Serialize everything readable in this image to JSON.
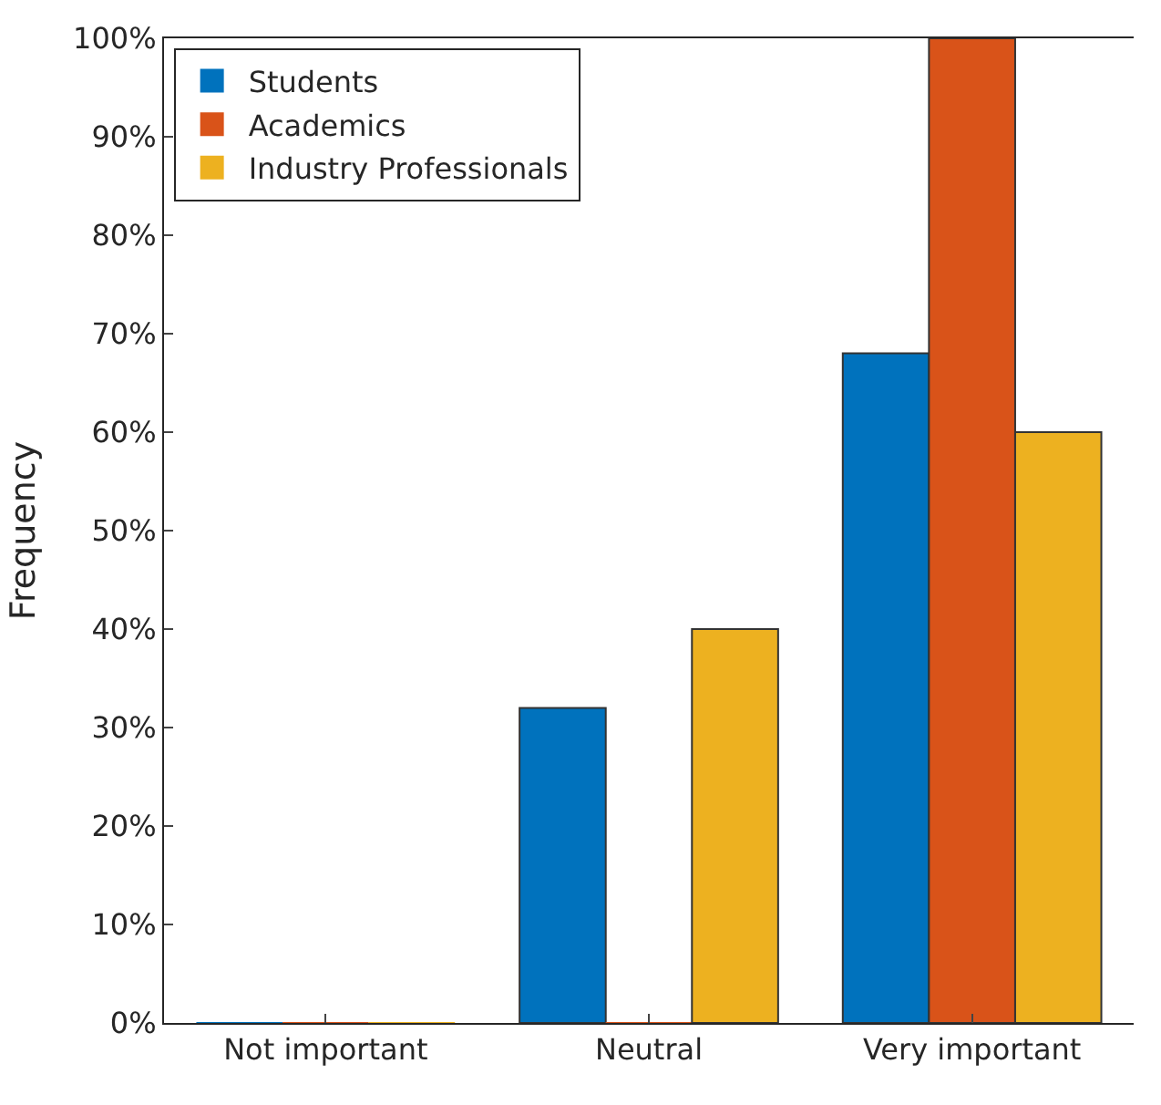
{
  "chart_data": {
    "type": "bar",
    "ylabel": "Frequency",
    "categories": [
      "Not important",
      "Neutral",
      "Very important"
    ],
    "series": [
      {
        "name": "Students",
        "color": "#0072bd",
        "values": [
          0,
          32,
          68
        ]
      },
      {
        "name": "Academics",
        "color": "#d95319",
        "values": [
          0,
          0,
          100
        ]
      },
      {
        "name": "Industry Professionals",
        "color": "#edb120",
        "values": [
          0,
          40,
          60
        ]
      }
    ],
    "ylim": [
      0,
      100
    ],
    "yticks": [
      {
        "value": 0,
        "label": "0%"
      },
      {
        "value": 10,
        "label": "10%"
      },
      {
        "value": 20,
        "label": "20%"
      },
      {
        "value": 30,
        "label": "30%"
      },
      {
        "value": 40,
        "label": "40%"
      },
      {
        "value": 50,
        "label": "50%"
      },
      {
        "value": 60,
        "label": "60%"
      },
      {
        "value": 70,
        "label": "70%"
      },
      {
        "value": 80,
        "label": "80%"
      },
      {
        "value": 90,
        "label": "90%"
      },
      {
        "value": 100,
        "label": "100%"
      }
    ],
    "grid": false,
    "legend": "top left"
  }
}
